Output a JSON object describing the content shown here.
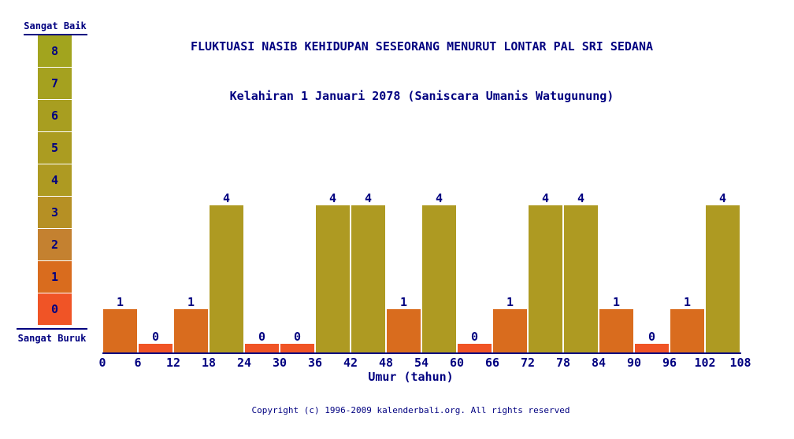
{
  "title": {
    "line1": "FLUKTUASI NASIB KEHIDUPAN SESEORANG MENURUT LONTAR PAL SRI SEDANA",
    "line2": "Kelahiran 1 Januari 2078 (Saniscara Umanis Watugunung)"
  },
  "legend": {
    "top_label": "Sangat Baik",
    "bottom_label": "Sangat Buruk",
    "levels_top_to_bottom": [
      8,
      7,
      6,
      5,
      4,
      3,
      2,
      1,
      0
    ]
  },
  "colors": {
    "text_navy": "#000080",
    "level_colors": [
      "#f05426",
      "#d96c1e",
      "#c48130",
      "#b69024",
      "#ae9a22",
      "#ab9c21",
      "#a89e20",
      "#a5a11f",
      "#a2a41e"
    ]
  },
  "chart_data": {
    "type": "bar",
    "title": "FLUKTUASI NASIB KEHIDUPAN SESEORANG MENURUT LONTAR PAL SRI SEDANA",
    "subtitle": "Kelahiran 1 Januari 2078 (Saniscara Umanis Watugunung)",
    "xlabel": "Umur (tahun)",
    "ylabel": "",
    "ylim": [
      0,
      8
    ],
    "x_ticks": [
      0,
      6,
      12,
      18,
      24,
      30,
      36,
      42,
      48,
      54,
      60,
      66,
      72,
      78,
      84,
      90,
      96,
      102,
      108
    ],
    "bar_interval_years": 6,
    "categories": [
      "0-6",
      "6-12",
      "12-18",
      "18-24",
      "24-30",
      "30-36",
      "36-42",
      "42-48",
      "48-54",
      "54-60",
      "60-66",
      "66-72",
      "72-78",
      "78-84",
      "84-90",
      "90-96",
      "96-102",
      "102-108"
    ],
    "values": [
      1,
      0,
      1,
      4,
      0,
      0,
      4,
      4,
      1,
      4,
      0,
      1,
      4,
      4,
      1,
      0,
      1,
      4
    ],
    "grid": false,
    "legend_position": "left",
    "legend_scale_labels": {
      "best": "Sangat Baik",
      "worst": "Sangat Buruk"
    }
  },
  "footer": {
    "copyright": "Copyright (c) 1996-2009 kalenderbali.org. All rights reserved"
  }
}
